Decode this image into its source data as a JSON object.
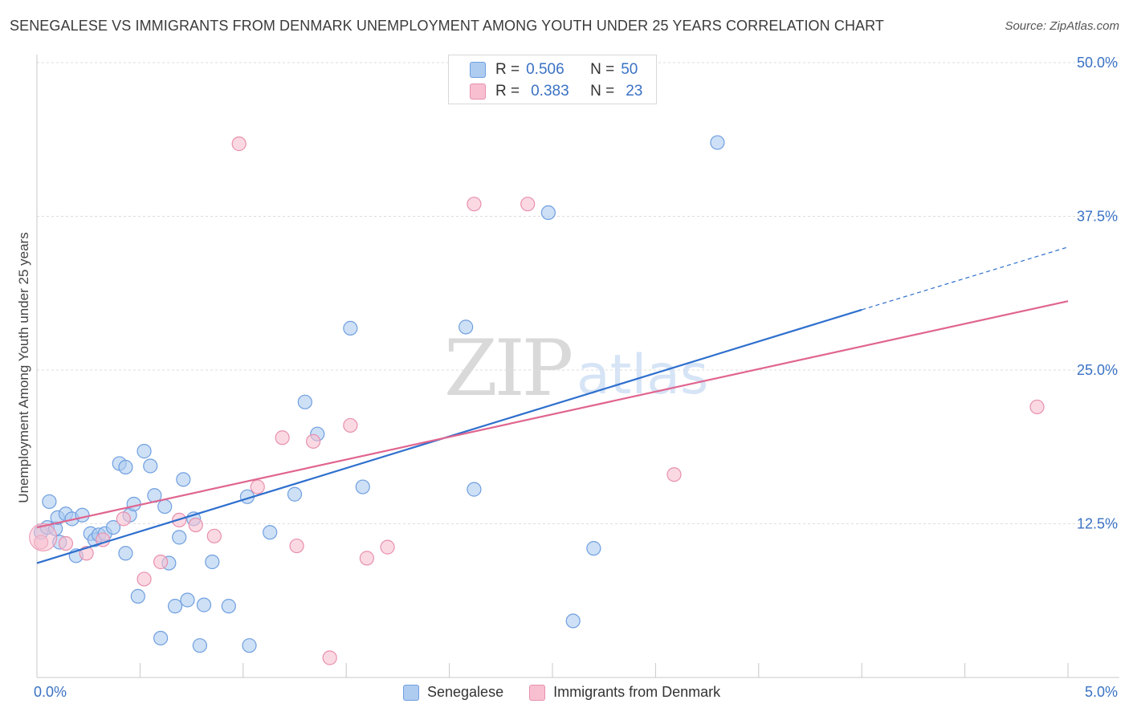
{
  "title": "SENEGALESE VS IMMIGRANTS FROM DENMARK UNEMPLOYMENT AMONG YOUTH UNDER 25 YEARS CORRELATION CHART",
  "source": "Source: ZipAtlas.com",
  "watermark": {
    "zip": "ZIP",
    "atlas": "atlas"
  },
  "legend_top": {
    "rows": [
      {
        "r_label": "R =",
        "r_value": "0.506",
        "n_label": "N =",
        "n_value": "50"
      },
      {
        "r_label": "R =",
        "r_value": "0.383",
        "n_label": "N =",
        "n_value": "23"
      }
    ]
  },
  "legend_bottom": {
    "series1": "Senegalese",
    "series2": "Immigrants from Denmark"
  },
  "colors": {
    "series1_fill": "#aecbf0",
    "series1_stroke": "#6f9fe0",
    "series1_line": "#2e6fcd",
    "series2_fill": "#f8bfd0",
    "series2_stroke": "#e890ad",
    "series2_line": "#e0658f",
    "axis_text": "#3a72c4",
    "grid": "#dddddd"
  },
  "chart_data": {
    "type": "scatter",
    "title": "SENEGALESE VS IMMIGRANTS FROM DENMARK UNEMPLOYMENT AMONG YOUTH UNDER 25 YEARS CORRELATION CHART",
    "xlabel": "",
    "ylabel": "Unemployment Among Youth under 25 years",
    "xlim": [
      0,
      5.0
    ],
    "ylim": [
      0,
      50.0
    ],
    "x_tick_labels": [
      "0.0%",
      "5.0%"
    ],
    "y_ticks": [
      12.5,
      25.0,
      37.5,
      50.0
    ],
    "y_tick_labels": [
      "12.5%",
      "25.0%",
      "37.5%",
      "50.0%"
    ],
    "grid": true,
    "legend_position": "top-center",
    "series": [
      {
        "name": "Senegalese",
        "R": 0.506,
        "N": 50,
        "trend": {
          "x0": 0.0,
          "y0": 9.3,
          "x1": 4.0,
          "y1": 29.9,
          "dashed_to_x": 5.0,
          "dashed_to_y": 35.0
        },
        "points": [
          [
            0.02,
            11.8
          ],
          [
            0.05,
            12.2
          ],
          [
            0.06,
            14.3
          ],
          [
            0.09,
            12.1
          ],
          [
            0.1,
            13.0
          ],
          [
            0.11,
            11.0
          ],
          [
            0.14,
            13.3
          ],
          [
            0.17,
            12.9
          ],
          [
            0.19,
            9.9
          ],
          [
            0.22,
            13.2
          ],
          [
            0.26,
            11.7
          ],
          [
            0.28,
            11.2
          ],
          [
            0.3,
            11.6
          ],
          [
            0.33,
            11.7
          ],
          [
            0.37,
            12.2
          ],
          [
            0.4,
            17.4
          ],
          [
            0.43,
            10.1
          ],
          [
            0.43,
            17.1
          ],
          [
            0.45,
            13.2
          ],
          [
            0.47,
            14.1
          ],
          [
            0.49,
            6.6
          ],
          [
            0.52,
            18.4
          ],
          [
            0.55,
            17.2
          ],
          [
            0.57,
            14.8
          ],
          [
            0.6,
            3.2
          ],
          [
            0.62,
            13.9
          ],
          [
            0.64,
            9.3
          ],
          [
            0.67,
            5.8
          ],
          [
            0.69,
            11.4
          ],
          [
            0.71,
            16.1
          ],
          [
            0.73,
            6.3
          ],
          [
            0.76,
            12.9
          ],
          [
            0.79,
            2.6
          ],
          [
            0.81,
            5.9
          ],
          [
            0.85,
            9.4
          ],
          [
            0.93,
            5.8
          ],
          [
            1.02,
            14.7
          ],
          [
            1.03,
            2.6
          ],
          [
            1.13,
            11.8
          ],
          [
            1.25,
            14.9
          ],
          [
            1.3,
            22.4
          ],
          [
            1.36,
            19.8
          ],
          [
            1.52,
            28.4
          ],
          [
            1.58,
            15.5
          ],
          [
            2.08,
            28.5
          ],
          [
            2.12,
            15.3
          ],
          [
            2.48,
            37.8
          ],
          [
            2.6,
            4.6
          ],
          [
            2.7,
            10.5
          ],
          [
            3.3,
            43.5
          ]
        ]
      },
      {
        "name": "Immigrants from Denmark",
        "R": 0.383,
        "N": 23,
        "trend": {
          "x0": 0.0,
          "y0": 12.2,
          "x1": 5.0,
          "y1": 30.6
        },
        "points": [
          [
            0.02,
            11.0
          ],
          [
            0.14,
            10.9
          ],
          [
            0.24,
            10.1
          ],
          [
            0.32,
            11.2
          ],
          [
            0.42,
            12.9
          ],
          [
            0.52,
            8.0
          ],
          [
            0.6,
            9.4
          ],
          [
            0.69,
            12.8
          ],
          [
            0.77,
            12.4
          ],
          [
            0.86,
            11.5
          ],
          [
            0.98,
            43.4
          ],
          [
            1.07,
            15.5
          ],
          [
            1.19,
            19.5
          ],
          [
            1.26,
            10.7
          ],
          [
            1.34,
            19.2
          ],
          [
            1.42,
            1.6
          ],
          [
            1.52,
            20.5
          ],
          [
            1.6,
            9.7
          ],
          [
            1.7,
            10.6
          ],
          [
            2.12,
            38.5
          ],
          [
            2.38,
            38.5
          ],
          [
            3.09,
            16.5
          ],
          [
            4.85,
            22.0
          ]
        ]
      }
    ]
  }
}
